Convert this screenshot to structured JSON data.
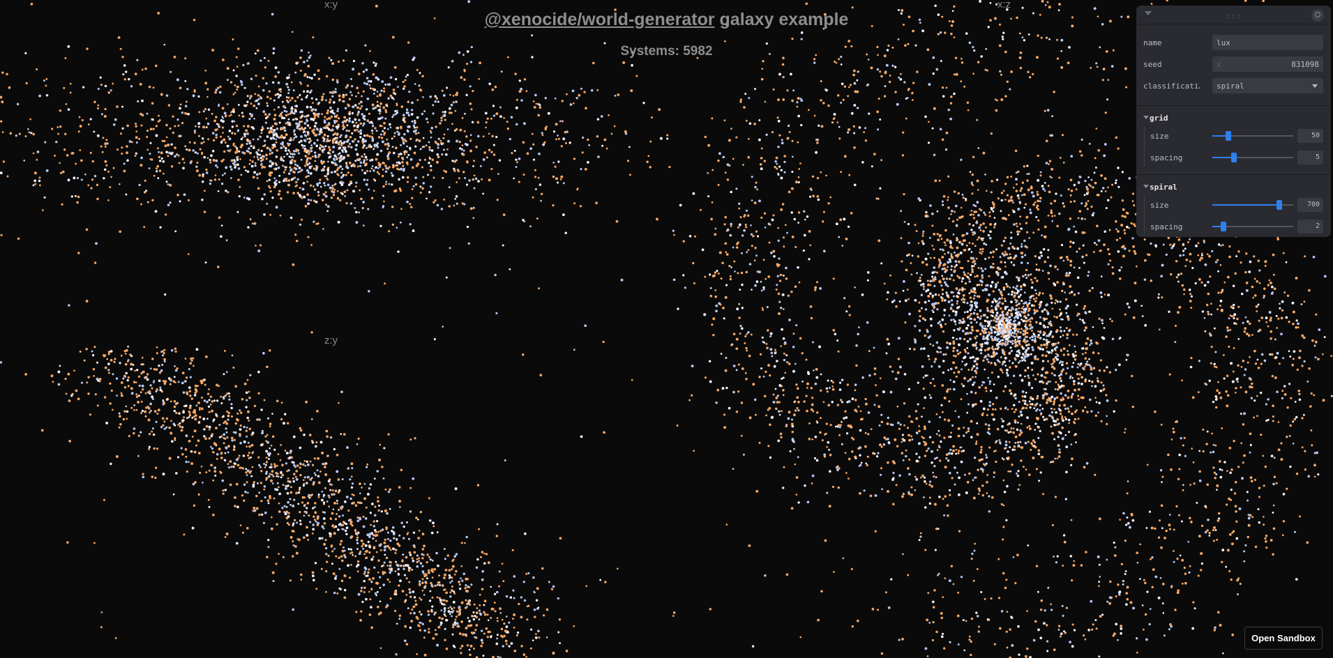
{
  "title": {
    "link_text": "@xenocide/world-generator",
    "rest": " galaxy example"
  },
  "systems_label": "Systems: 5982",
  "plots": {
    "xy": "x:y",
    "xz": "x:z",
    "zy": "z:y"
  },
  "colors": {
    "background": "#0a0a0a",
    "star_orange": "#f7a866",
    "star_blue": "#b5c8f2",
    "star_white": "#f2f2ff",
    "accent": "#2f80ed"
  },
  "panel": {
    "fields": {
      "name_label": "name",
      "name_value": "lux",
      "seed_label": "seed",
      "seed_value": "831098",
      "classification_label": "classificati…",
      "classification_value": "spiral"
    },
    "grid": {
      "title": "grid",
      "size_label": "size",
      "size_value": "50",
      "size_fraction": 0.2,
      "spacing_label": "spacing",
      "spacing_value": "5",
      "spacing_fraction": 0.27
    },
    "spiral": {
      "title": "spiral",
      "size_label": "size",
      "size_value": "700",
      "size_fraction": 0.83,
      "spacing_label": "spacing",
      "spacing_value": "2",
      "spacing_fraction": 0.14
    }
  },
  "open_sandbox": "Open Sandbox"
}
